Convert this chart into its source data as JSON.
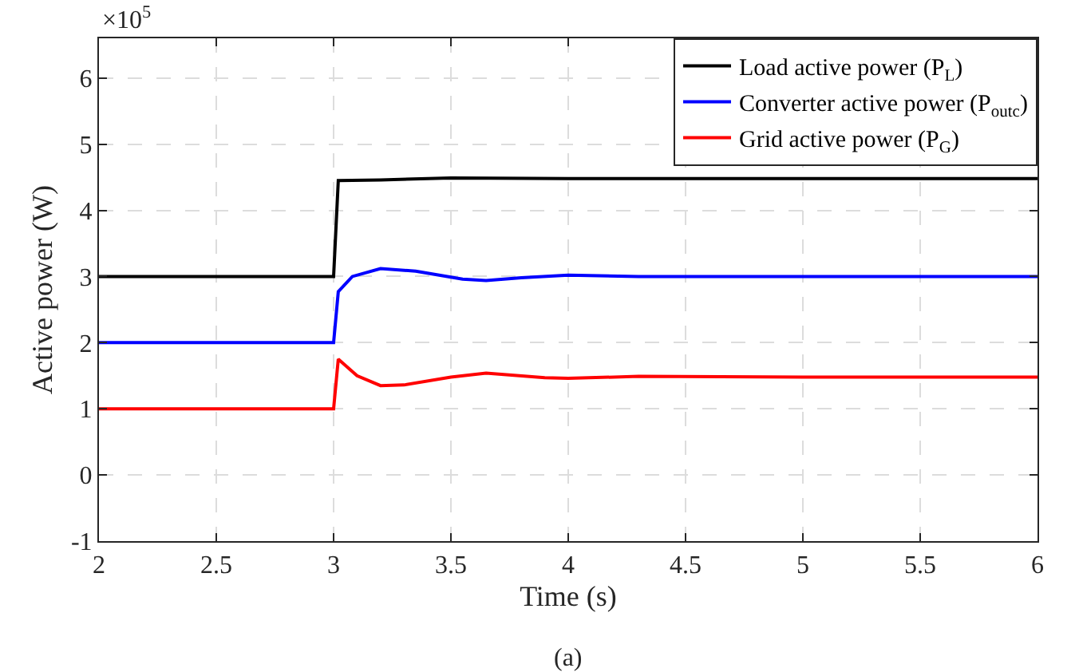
{
  "chart_data": {
    "type": "line",
    "xlabel": "Time (s)",
    "ylabel": "Active power (W)",
    "annotations": [
      "×10$^{5}$",
      "(a)"
    ],
    "xlim": [
      2,
      6
    ],
    "xticks": [
      2,
      2.5,
      3,
      3.5,
      4,
      4.5,
      5,
      5.5,
      6
    ],
    "ylim": [
      -1,
      6.6
    ],
    "yticks": [
      -1,
      0,
      1,
      2,
      3,
      4,
      5,
      6
    ],
    "grid": true,
    "legend": "top right",
    "line_style": "solid",
    "marker": "none",
    "series": [
      {
        "name": "Load active power (P$_{L}$)",
        "color": "#000000",
        "x": [
          2,
          3,
          3.02,
          3.2,
          3.5,
          4,
          4.5,
          6
        ],
        "values": [
          3,
          3,
          4.45,
          4.46,
          4.49,
          4.48,
          4.48,
          4.48
        ]
      },
      {
        "name": "Converter active power (P$_{outc}$)",
        "color": "#0000ff",
        "x": [
          2,
          3,
          3.02,
          3.08,
          3.2,
          3.35,
          3.55,
          3.65,
          3.8,
          4,
          4.3,
          5,
          6
        ],
        "values": [
          2,
          2,
          2.77,
          3,
          3.12,
          3.08,
          2.96,
          2.94,
          2.98,
          3.02,
          3,
          3,
          3
        ]
      },
      {
        "name": "Grid active power (P$_{G}$)",
        "color": "#ff0000",
        "x": [
          2,
          3,
          3.02,
          3.1,
          3.2,
          3.3,
          3.5,
          3.65,
          3.9,
          4,
          4.3,
          5,
          6
        ],
        "values": [
          1,
          1,
          1.75,
          1.5,
          1.35,
          1.36,
          1.48,
          1.54,
          1.47,
          1.46,
          1.49,
          1.48,
          1.48
        ]
      }
    ]
  }
}
